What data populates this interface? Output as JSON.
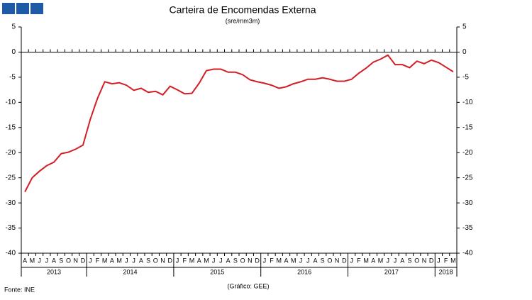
{
  "chart_data": {
    "type": "line",
    "title": "Carteira de Encomendas Externa",
    "subtitle": "(sre/mm3m)",
    "source": "Fonte: INE",
    "credit": "(Gráfico: GEE)",
    "categories": [
      "A",
      "M",
      "J",
      "J",
      "A",
      "S",
      "O",
      "N",
      "D",
      "J",
      "F",
      "M",
      "A",
      "M",
      "J",
      "J",
      "A",
      "S",
      "O",
      "N",
      "D",
      "J",
      "F",
      "M",
      "A",
      "M",
      "J",
      "J",
      "A",
      "S",
      "O",
      "N",
      "D",
      "J",
      "F",
      "M",
      "A",
      "M",
      "J",
      "J",
      "A",
      "S",
      "O",
      "N",
      "D",
      "J",
      "F",
      "M",
      "A",
      "M",
      "J",
      "J",
      "A",
      "S",
      "O",
      "N",
      "D",
      "J",
      "F",
      "M"
    ],
    "year_labels": [
      "2013",
      "2014",
      "2015",
      "2016",
      "2017",
      "2018"
    ],
    "series": [
      {
        "color": "#d21f26",
        "values": [
          -27.8,
          -25,
          -23.7,
          -22.6,
          -21.9,
          -20.2,
          -19.9,
          -19.3,
          -18.5,
          -13.4,
          -9.2,
          -5.9,
          -6.3,
          -6.1,
          -6.6,
          -7.6,
          -7.2,
          -8,
          -7.8,
          -8.5,
          -6.8,
          -7.5,
          -8.3,
          -8.2,
          -6.2,
          -3.7,
          -3.4,
          -3.4,
          -4,
          -4,
          -4.5,
          -5.5,
          -5.9,
          -6.2,
          -6.6,
          -7.2,
          -6.9,
          -6.3,
          -5.9,
          -5.4,
          -5.4,
          -5.1,
          -5.4,
          -5.8,
          -5.8,
          -5.4,
          -4.2,
          -3.2,
          -2,
          -1.4,
          -0.6,
          -2.5,
          -2.5,
          -3.1,
          -1.8,
          -2.3,
          -1.6,
          -2.1,
          -3,
          -3.9
        ]
      }
    ],
    "ylim": [
      -40,
      5
    ],
    "yticks": [
      -40,
      -35,
      -30,
      -25,
      -20,
      -15,
      -10,
      -5,
      0,
      5
    ],
    "grid": false
  }
}
